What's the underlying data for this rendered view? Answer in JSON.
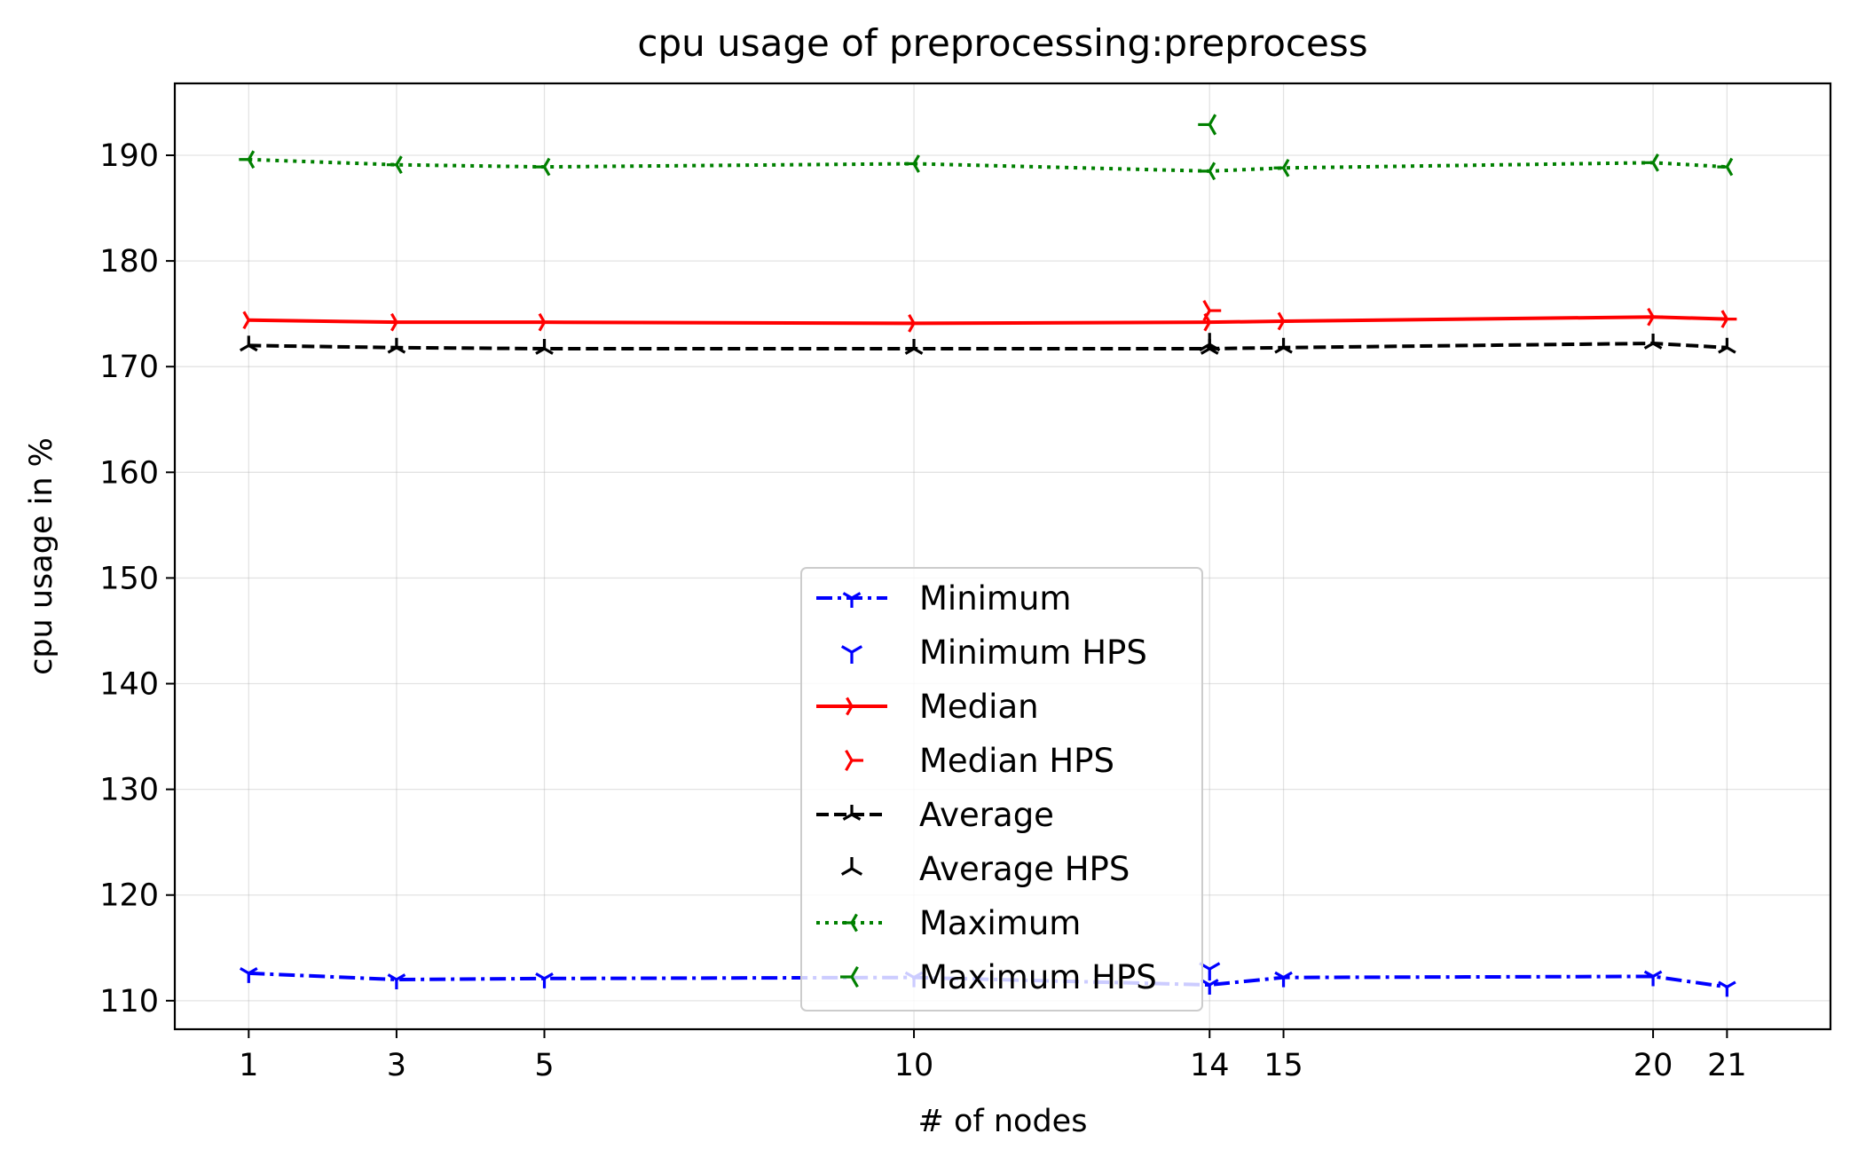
{
  "chart_data": {
    "type": "line",
    "title": "cpu usage of preprocessing:preprocess",
    "xlabel": "# of nodes",
    "ylabel": "cpu usage in %",
    "xlim": [
      0,
      22.4
    ],
    "ylim": [
      107.3,
      196.8
    ],
    "xticks": [
      1,
      3,
      5,
      10,
      14,
      15,
      20,
      21
    ],
    "yticks": [
      110,
      120,
      130,
      140,
      150,
      160,
      170,
      180,
      190
    ],
    "grid": true,
    "legend_position": "lower center",
    "series": [
      {
        "name": "Minimum",
        "color": "#0000ff",
        "dash": "dashdot",
        "marker": "tri_down",
        "line": true,
        "x": [
          1,
          3,
          5,
          10,
          14,
          15,
          20,
          21
        ],
        "y": [
          112.6,
          112.0,
          112.1,
          112.2,
          111.5,
          112.2,
          112.3,
          111.3
        ]
      },
      {
        "name": "Minimum HPS",
        "color": "#0000ff",
        "marker": "tri_down",
        "line": false,
        "x": [
          14
        ],
        "y": [
          113.0
        ]
      },
      {
        "name": "Median",
        "color": "#ff0000",
        "dash": "solid",
        "marker": "tri_right",
        "line": true,
        "x": [
          1,
          3,
          5,
          10,
          14,
          15,
          20,
          21
        ],
        "y": [
          174.4,
          174.2,
          174.2,
          174.1,
          174.2,
          174.3,
          174.7,
          174.5
        ]
      },
      {
        "name": "Median HPS",
        "color": "#ff0000",
        "marker": "tri_right",
        "line": false,
        "x": [
          14
        ],
        "y": [
          175.3
        ]
      },
      {
        "name": "Average",
        "color": "#000000",
        "dash": "dashed",
        "marker": "tri_up",
        "line": true,
        "x": [
          1,
          3,
          5,
          10,
          14,
          15,
          20,
          21
        ],
        "y": [
          172.0,
          171.8,
          171.7,
          171.7,
          171.7,
          171.8,
          172.2,
          171.8
        ]
      },
      {
        "name": "Average HPS",
        "color": "#000000",
        "marker": "tri_up",
        "line": false,
        "x": [
          14
        ],
        "y": [
          172.1
        ]
      },
      {
        "name": "Maximum",
        "color": "#008000",
        "dash": "dotted",
        "marker": "tri_left",
        "line": true,
        "x": [
          1,
          3,
          5,
          10,
          14,
          15,
          20,
          21
        ],
        "y": [
          189.6,
          189.1,
          188.9,
          189.2,
          188.5,
          188.8,
          189.3,
          188.9
        ]
      },
      {
        "name": "Maximum HPS",
        "color": "#008000",
        "marker": "tri_left",
        "line": false,
        "x": [
          14
        ],
        "y": [
          192.9
        ]
      }
    ]
  }
}
